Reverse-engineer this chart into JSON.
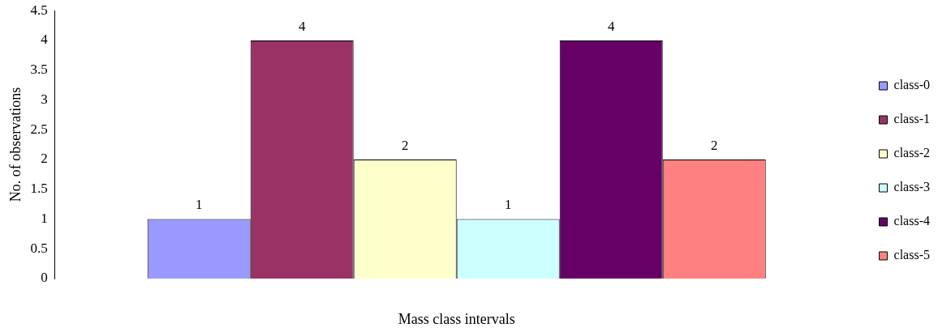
{
  "chart_data": {
    "type": "bar",
    "ylabel": "No. of observations",
    "xlabel": "Mass class intervals",
    "categories": [
      null
    ],
    "series": [
      {
        "name": "class-0",
        "color": "#9999ff",
        "values": [
          1
        ]
      },
      {
        "name": "class-1",
        "color": "#993366",
        "values": [
          4
        ]
      },
      {
        "name": "class-2",
        "color": "#ffffcc",
        "values": [
          2
        ]
      },
      {
        "name": "class-3",
        "color": "#ccffff",
        "values": [
          1
        ]
      },
      {
        "name": "class-4",
        "color": "#660066",
        "values": [
          4
        ]
      },
      {
        "name": "class-5",
        "color": "#ff8080",
        "values": [
          2
        ]
      }
    ],
    "ylim": [
      0,
      4.5
    ],
    "yticks": [
      0,
      0.5,
      1,
      1.5,
      2,
      2.5,
      3,
      3.5,
      4,
      4.5
    ],
    "grid": false,
    "legend": "right",
    "data_labels": true
  }
}
